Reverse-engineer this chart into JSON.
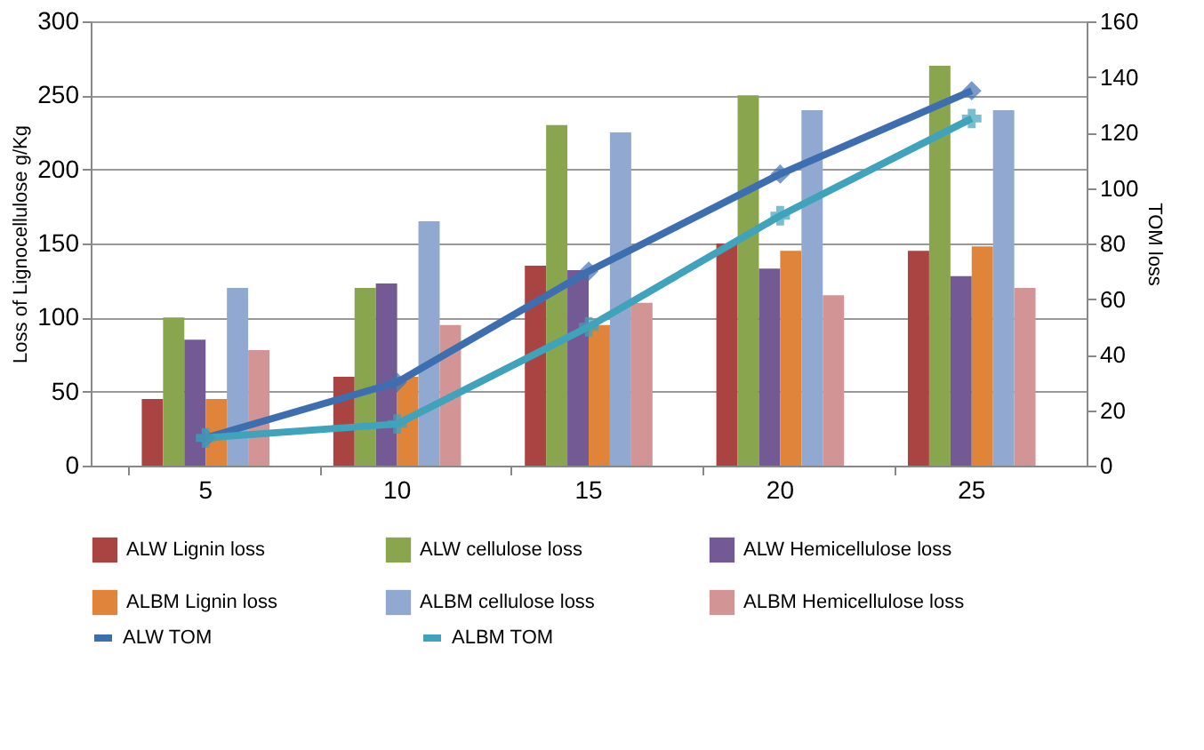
{
  "chart_data": {
    "type": "bar",
    "categories": [
      "5",
      "10",
      "15",
      "20",
      "25"
    ],
    "ylabel": "Loss  of Lignocellulose g/Kg",
    "y2label": "TOM loss",
    "ylim": [
      0,
      300
    ],
    "yticks": [
      0,
      50,
      100,
      150,
      200,
      250,
      300
    ],
    "y2lim": [
      0,
      160
    ],
    "y2ticks": [
      0,
      20,
      40,
      60,
      80,
      100,
      120,
      140,
      160
    ],
    "grid": "y",
    "legend": "bottom",
    "series": [
      {
        "name": "ALW Lignin loss",
        "color": "#a94442",
        "values": [
          45,
          60,
          135,
          150,
          145
        ]
      },
      {
        "name": "ALW  cellulose loss",
        "color": "#89a64e",
        "values": [
          100,
          120,
          230,
          250,
          270
        ]
      },
      {
        "name": "ALW Hemicellulose loss",
        "color": "#735a94",
        "values": [
          85,
          123,
          132,
          133,
          128
        ]
      },
      {
        "name": "ALBM Lignin loss",
        "color": "#e0843a",
        "values": [
          45,
          60,
          95,
          145,
          148
        ]
      },
      {
        "name": "ALBM  cellulose loss",
        "color": "#91a9d1",
        "values": [
          120,
          165,
          225,
          240,
          240
        ]
      },
      {
        "name": "ALBM Hemicellulose loss",
        "color": "#d29494",
        "values": [
          78,
          95,
          110,
          115,
          120
        ]
      },
      {
        "name": "ALW TOM",
        "color": "#3d6fb0",
        "type": "line",
        "axis": "y2",
        "marker": "diamond",
        "line_style": "solid",
        "values": [
          10,
          30,
          70,
          105,
          135
        ]
      },
      {
        "name": "ALBM TOM",
        "color": "#3fa3bb",
        "type": "line",
        "axis": "y2",
        "marker": "cross",
        "line_style": "solid",
        "values": [
          10,
          15,
          50,
          90,
          125
        ]
      }
    ]
  }
}
